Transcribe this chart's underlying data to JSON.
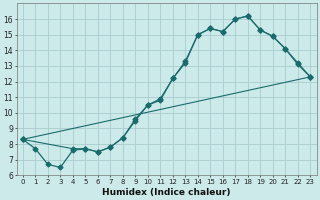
{
  "xlabel": "Humidex (Indice chaleur)",
  "bg_color": "#cceaea",
  "grid_color": "#aacccc",
  "line_color": "#1a6b6b",
  "xlim": [
    -0.5,
    23.5
  ],
  "ylim": [
    6,
    17
  ],
  "xticks": [
    0,
    1,
    2,
    3,
    4,
    5,
    6,
    7,
    8,
    9,
    10,
    11,
    12,
    13,
    14,
    15,
    16,
    17,
    18,
    19,
    20,
    21,
    22,
    23
  ],
  "yticks": [
    6,
    7,
    8,
    9,
    10,
    11,
    12,
    13,
    14,
    15,
    16
  ],
  "line1_x": [
    0,
    1,
    2,
    3,
    4,
    5,
    6,
    7,
    8,
    9,
    10,
    11,
    12,
    13,
    14,
    15,
    16,
    17,
    18,
    19,
    20,
    21,
    22,
    23
  ],
  "line1_y": [
    8.3,
    7.7,
    6.7,
    6.5,
    7.6,
    7.7,
    7.5,
    7.8,
    8.4,
    9.5,
    10.5,
    10.8,
    12.2,
    13.2,
    15.0,
    15.4,
    15.2,
    16.0,
    16.2,
    15.3,
    14.9,
    14.1,
    13.1,
    12.3
  ],
  "line2_x": [
    0,
    4,
    5,
    6,
    7,
    8,
    9,
    10,
    11,
    12,
    13,
    14,
    15,
    16,
    17,
    18,
    19,
    20,
    21,
    22,
    23
  ],
  "line2_y": [
    8.3,
    7.7,
    7.7,
    7.5,
    7.8,
    8.4,
    9.6,
    10.5,
    10.9,
    12.2,
    13.3,
    15.0,
    15.4,
    15.2,
    16.0,
    16.2,
    15.3,
    14.9,
    14.1,
    13.2,
    12.3
  ],
  "line3_x": [
    0,
    23
  ],
  "line3_y": [
    8.3,
    12.3
  ],
  "marker": "D",
  "marker_size": 2.5,
  "tick_fontsize": 5.0,
  "xlabel_fontsize": 6.5
}
